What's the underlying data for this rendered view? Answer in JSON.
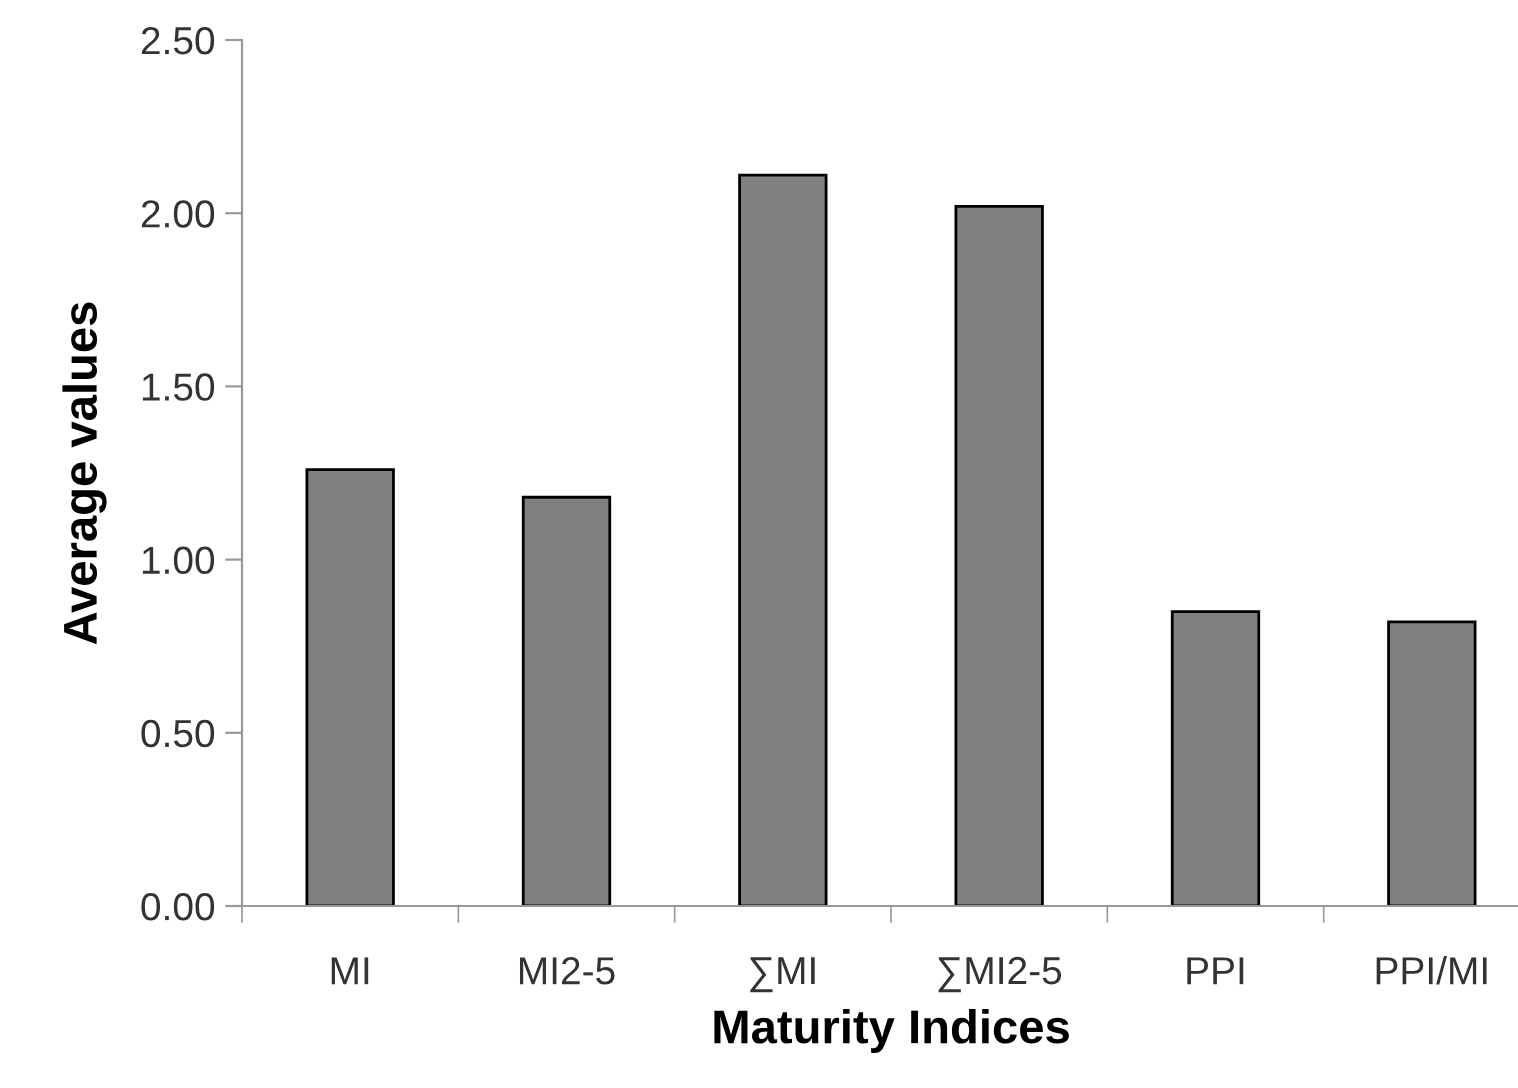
{
  "chart_data": {
    "type": "bar",
    "xlabel": "Maturity Indices",
    "ylabel": "Average values",
    "categories": [
      "MI",
      "MI2-5",
      "∑MI",
      "∑MI2-5",
      "PPI",
      "PPI/MI"
    ],
    "values": [
      1.26,
      1.18,
      2.11,
      2.02,
      0.85,
      0.82
    ],
    "color": "#808080",
    "ylim": [
      0,
      2.5
    ],
    "yticks": [
      {
        "value": 0,
        "label": "0.00"
      },
      {
        "value": 0.5,
        "label": "0.50"
      },
      {
        "value": 1,
        "label": "1.00"
      },
      {
        "value": 1.5,
        "label": "1.50"
      },
      {
        "value": 2,
        "label": "2.00"
      },
      {
        "value": 2.5,
        "label": "2.50"
      }
    ],
    "grid": false
  }
}
